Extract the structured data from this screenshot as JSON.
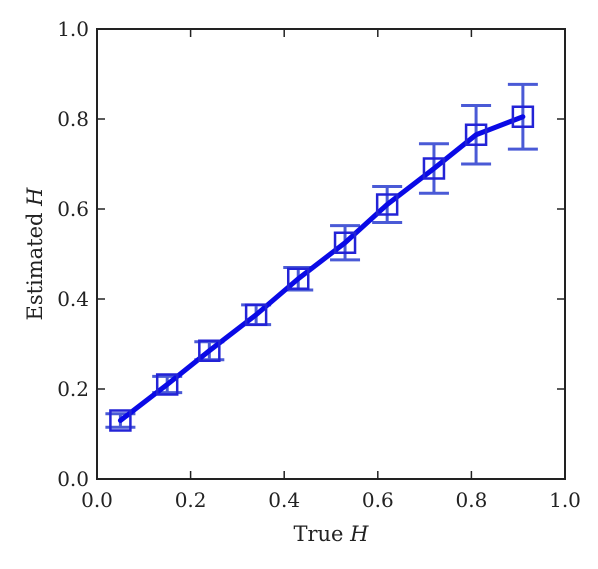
{
  "chart_data": {
    "type": "line",
    "xlabel": "True",
    "xlabel_var": "H",
    "ylabel": "Estimated",
    "ylabel_var": "H",
    "xlim": [
      0.0,
      1.0
    ],
    "ylim": [
      0.0,
      1.0
    ],
    "xticks": [
      "0.0",
      "0.2",
      "0.4",
      "0.6",
      "0.8",
      "1.0"
    ],
    "yticks": [
      "0.0",
      "0.2",
      "0.4",
      "0.6",
      "0.8",
      "1.0"
    ],
    "grid": false,
    "colors": {
      "line": "#0a0ae6",
      "marker": "#2323d6",
      "errorbar": "#4a5ad6"
    },
    "series": [
      {
        "marker": "square",
        "x": [
          0.05,
          0.15,
          0.24,
          0.34,
          0.43,
          0.53,
          0.62,
          0.72,
          0.81,
          0.91
        ],
        "y": [
          0.13,
          0.21,
          0.285,
          0.365,
          0.445,
          0.525,
          0.61,
          0.69,
          0.765,
          0.805
        ],
        "err": [
          0.015,
          0.018,
          0.02,
          0.022,
          0.025,
          0.038,
          0.04,
          0.055,
          0.065,
          0.072
        ]
      }
    ]
  }
}
